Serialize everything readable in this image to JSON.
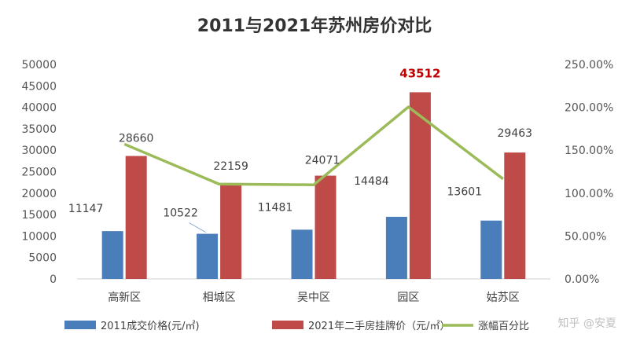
{
  "chart_data": {
    "type": "bar",
    "title": "2011与2021年苏州房价对比",
    "categories": [
      "高新区",
      "相城区",
      "吴中区",
      "园区",
      "姑苏区"
    ],
    "series": [
      {
        "name": "2011成交价格(元/㎡)",
        "kind": "bar",
        "axis": "left",
        "color": "#4a7ebb",
        "values": [
          11147,
          10522,
          11481,
          14484,
          13601
        ]
      },
      {
        "name": "2021年二手房挂牌价（元/㎡）",
        "kind": "bar",
        "axis": "left",
        "color": "#be4b48",
        "values": [
          28660,
          22159,
          24071,
          43512,
          29463
        ]
      },
      {
        "name": "涨幅百分比",
        "kind": "line",
        "axis": "right",
        "color": "#9bbb59",
        "values": [
          157.1,
          110.6,
          109.7,
          200.4,
          116.6
        ]
      }
    ],
    "highlight_label": {
      "series": 1,
      "index": 3,
      "color": "#c00000"
    },
    "y_left": {
      "min": 0,
      "max": 50000,
      "step": 5000,
      "ticks": [
        "0",
        "5000",
        "10000",
        "15000",
        "20000",
        "25000",
        "30000",
        "35000",
        "40000",
        "45000",
        "50000"
      ]
    },
    "y_right": {
      "min": 0,
      "max": 250,
      "step": 50,
      "ticks": [
        "0.00%",
        "50.00%",
        "100.00%",
        "150.00%",
        "200.00%",
        "250.00%"
      ]
    },
    "grid": false,
    "legend_position": "bottom"
  },
  "watermark": "知乎 @安夏"
}
